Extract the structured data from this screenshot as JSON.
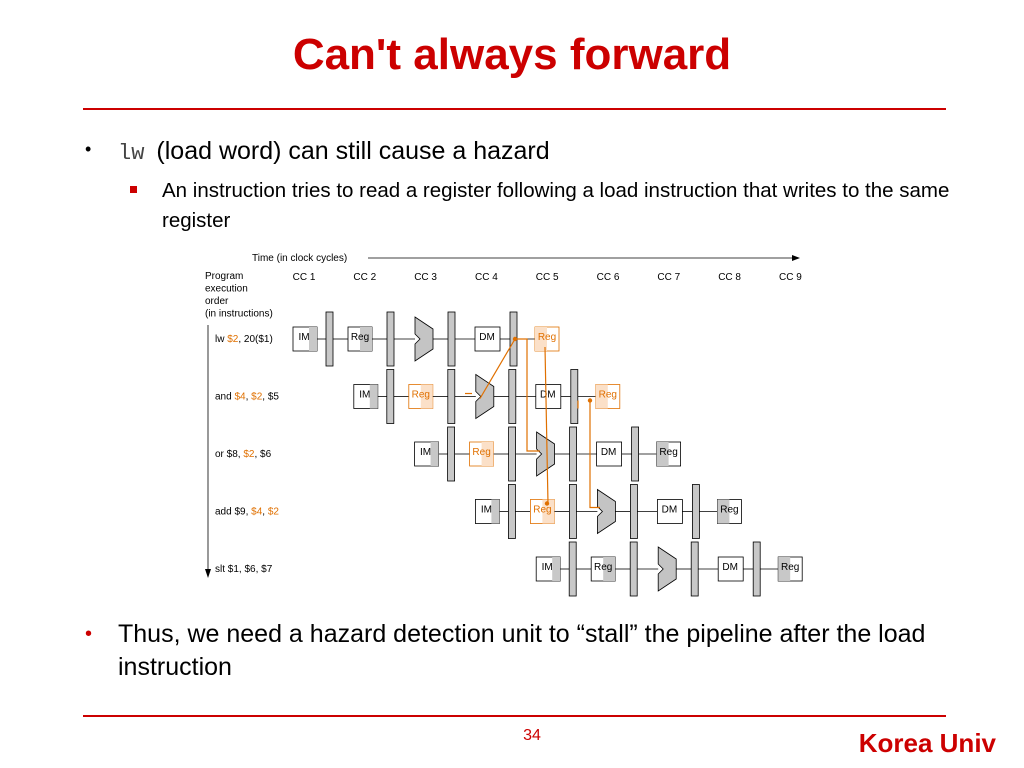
{
  "slide": {
    "title": "Can't always forward",
    "bullet1": {
      "code": "lw",
      "text": "(load word) can still cause a hazard"
    },
    "sub_bullet": "An instruction tries to read a register following a load instruction that writes to the same register",
    "bullet2": "Thus, we need a hazard detection unit to “stall” the pipeline after the load instruction",
    "page_number": "34",
    "footer": "Korea Univ"
  },
  "diagram": {
    "time_label": "Time (in clock cycles)",
    "program_label": [
      "Program",
      "execution",
      "order",
      "(in instructions)"
    ],
    "cycles": [
      "CC 1",
      "CC 2",
      "CC 3",
      "CC 4",
      "CC 5",
      "CC 6",
      "CC 7",
      "CC 8",
      "CC 9"
    ],
    "stage_labels": {
      "im": "IM",
      "reg": "Reg",
      "dm": "DM"
    },
    "instructions": [
      {
        "parts": [
          {
            "t": "lw "
          },
          {
            "t": "$2",
            "hl": true
          },
          {
            "t": ", 20($1)"
          }
        ],
        "start_cycle": 1,
        "reg_read_highlight": false,
        "reg_write_highlight": true
      },
      {
        "parts": [
          {
            "t": "and "
          },
          {
            "t": "$4",
            "hl": true
          },
          {
            "t": ", "
          },
          {
            "t": "$2",
            "hl": true
          },
          {
            "t": ", $5"
          }
        ],
        "start_cycle": 2,
        "reg_read_highlight": true,
        "reg_write_highlight": true
      },
      {
        "parts": [
          {
            "t": "or $8, "
          },
          {
            "t": "$2",
            "hl": true
          },
          {
            "t": ", $6"
          }
        ],
        "start_cycle": 3,
        "reg_read_highlight": true,
        "reg_write_highlight": false
      },
      {
        "parts": [
          {
            "t": "add $9, "
          },
          {
            "t": "$4",
            "hl": true
          },
          {
            "t": ", "
          },
          {
            "t": "$2",
            "hl": true
          }
        ],
        "start_cycle": 4,
        "reg_read_highlight": true,
        "reg_write_highlight": false
      },
      {
        "parts": [
          {
            "t": "slt $1, $6, $7"
          }
        ],
        "start_cycle": 5,
        "reg_read_highlight": false,
        "reg_write_highlight": false
      }
    ],
    "colors": {
      "highlight": "#e07000",
      "register_fill": "#c8c8c8",
      "accent": "#cc0000"
    }
  }
}
